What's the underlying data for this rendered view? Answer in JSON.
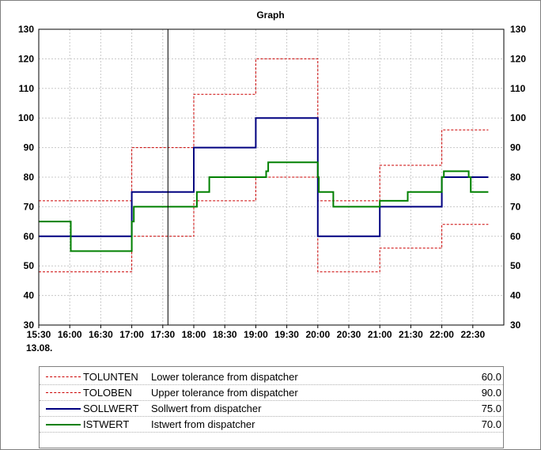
{
  "chart_data": {
    "type": "line",
    "title": "Graph",
    "date_label": "13.08.",
    "x_ticks": [
      "15:30",
      "16:00",
      "16:30",
      "17:00",
      "17:30",
      "18:00",
      "18:30",
      "19:00",
      "19:30",
      "20:00",
      "20:30",
      "21:00",
      "21:30",
      "22:00",
      "22:30"
    ],
    "x_range": [
      "15:30",
      "23:00"
    ],
    "y_range": [
      30,
      130
    ],
    "y_ticks": [
      30,
      40,
      50,
      60,
      70,
      80,
      90,
      100,
      110,
      120,
      130
    ],
    "cursor_time": "17:35",
    "grid": true,
    "series": [
      {
        "name": "TOLUNTEN",
        "description": "Lower tolerance from dispatcher",
        "current_value": "60.0",
        "color": "#cc0000",
        "style": "dashed",
        "points": [
          [
            "15:30",
            48
          ],
          [
            "17:00",
            48
          ],
          [
            "17:00",
            60
          ],
          [
            "18:00",
            60
          ],
          [
            "18:00",
            72
          ],
          [
            "19:00",
            72
          ],
          [
            "19:00",
            80
          ],
          [
            "20:00",
            80
          ],
          [
            "20:00",
            48
          ],
          [
            "21:00",
            48
          ],
          [
            "21:00",
            56
          ],
          [
            "22:00",
            56
          ],
          [
            "22:00",
            64
          ],
          [
            "22:45",
            64
          ]
        ]
      },
      {
        "name": "TOLOBEN",
        "description": "Upper tolerance from dispatcher",
        "current_value": "90.0",
        "color": "#cc0000",
        "style": "dashed",
        "points": [
          [
            "15:30",
            72
          ],
          [
            "17:00",
            72
          ],
          [
            "17:00",
            90
          ],
          [
            "18:00",
            90
          ],
          [
            "18:00",
            108
          ],
          [
            "19:00",
            108
          ],
          [
            "19:00",
            120
          ],
          [
            "20:00",
            120
          ],
          [
            "20:00",
            72
          ],
          [
            "21:00",
            72
          ],
          [
            "21:00",
            84
          ],
          [
            "22:00",
            84
          ],
          [
            "22:00",
            96
          ],
          [
            "22:45",
            96
          ]
        ]
      },
      {
        "name": "SOLLWERT",
        "description": "Sollwert from dispatcher",
        "current_value": "75.0",
        "color": "#000080",
        "style": "solid",
        "points": [
          [
            "15:30",
            60
          ],
          [
            "17:00",
            60
          ],
          [
            "17:00",
            75
          ],
          [
            "18:00",
            75
          ],
          [
            "18:00",
            90
          ],
          [
            "19:00",
            90
          ],
          [
            "19:00",
            100
          ],
          [
            "20:00",
            100
          ],
          [
            "20:00",
            60
          ],
          [
            "21:00",
            60
          ],
          [
            "21:00",
            70
          ],
          [
            "22:00",
            70
          ],
          [
            "22:00",
            80
          ],
          [
            "22:45",
            80
          ]
        ]
      },
      {
        "name": "ISTWERT",
        "description": "Istwert from dispatcher",
        "current_value": "70.0",
        "color": "#008000",
        "style": "solid",
        "points": [
          [
            "15:30",
            65
          ],
          [
            "16:01",
            65
          ],
          [
            "16:01",
            55
          ],
          [
            "17:00",
            55
          ],
          [
            "17:00",
            65
          ],
          [
            "17:02",
            65
          ],
          [
            "17:02",
            70
          ],
          [
            "18:03",
            70
          ],
          [
            "18:03",
            75
          ],
          [
            "18:15",
            75
          ],
          [
            "18:15",
            80
          ],
          [
            "19:10",
            80
          ],
          [
            "19:10",
            82
          ],
          [
            "19:12",
            82
          ],
          [
            "19:12",
            85
          ],
          [
            "20:00",
            85
          ],
          [
            "20:00",
            80
          ],
          [
            "20:01",
            80
          ],
          [
            "20:01",
            75
          ],
          [
            "20:15",
            75
          ],
          [
            "20:15",
            70
          ],
          [
            "21:00",
            70
          ],
          [
            "21:00",
            72
          ],
          [
            "21:27",
            72
          ],
          [
            "21:27",
            75
          ],
          [
            "22:00",
            75
          ],
          [
            "22:00",
            80
          ],
          [
            "22:02",
            80
          ],
          [
            "22:02",
            82
          ],
          [
            "22:26",
            82
          ],
          [
            "22:26",
            80
          ],
          [
            "22:28",
            80
          ],
          [
            "22:28",
            75
          ],
          [
            "22:45",
            75
          ]
        ]
      }
    ]
  }
}
